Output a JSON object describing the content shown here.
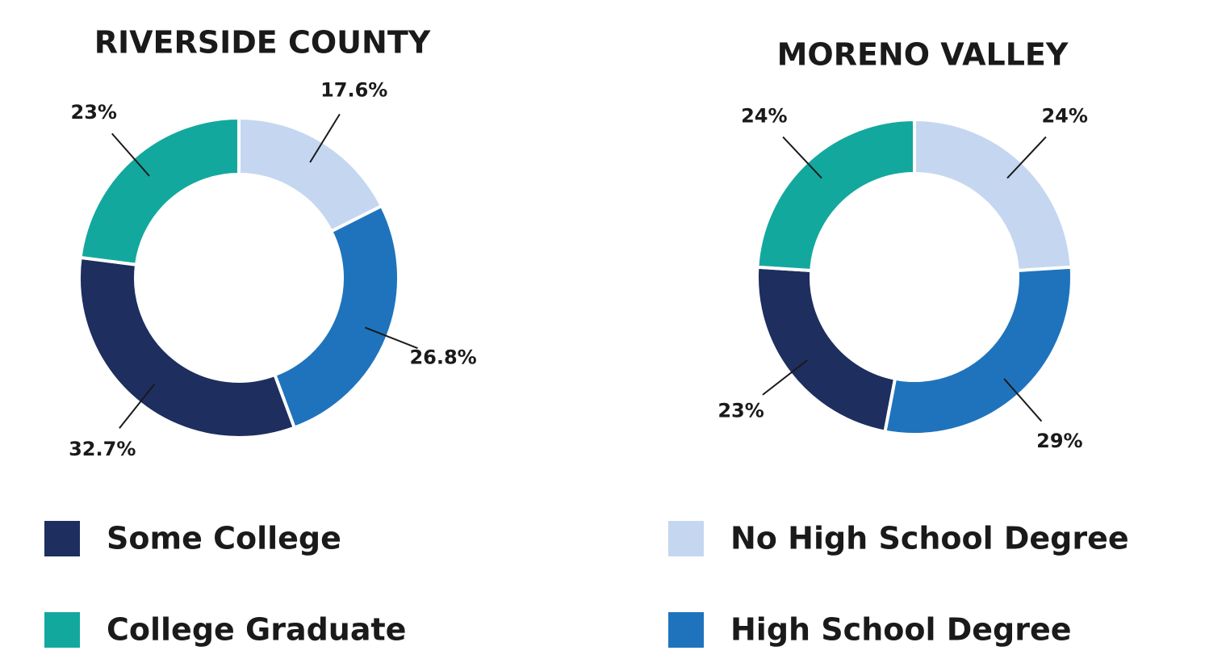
{
  "chart_data": [
    {
      "type": "pie",
      "title": "RIVERSIDE COUNTY",
      "categories": [
        "No High School Degree",
        "High School Degree",
        "Some College",
        "College Graduate"
      ],
      "values": [
        17.6,
        26.8,
        32.7,
        23
      ],
      "value_labels": [
        "17.6%",
        "26.8%",
        "32.7%",
        "23%"
      ],
      "colors": [
        "#c5d7f0",
        "#1f73bc",
        "#1d2e5f",
        "#13a89e"
      ]
    },
    {
      "type": "pie",
      "title": "MORENO VALLEY",
      "categories": [
        "No High School Degree",
        "High School Degree",
        "Some College",
        "College Graduate"
      ],
      "values": [
        24,
        29,
        23,
        24
      ],
      "value_labels": [
        "24%",
        "29%",
        "23%",
        "24%"
      ],
      "colors": [
        "#c5d7f0",
        "#1f73bc",
        "#1d2e5f",
        "#13a89e"
      ]
    }
  ]
}
